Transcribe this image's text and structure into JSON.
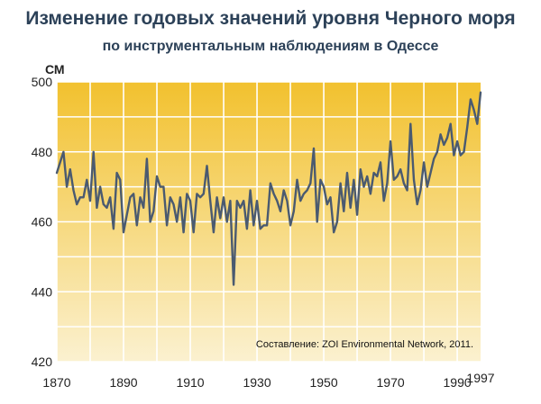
{
  "chart_data": {
    "type": "line",
    "title": "Изменение годовых значений уровня Черного моря",
    "subtitle": "по инструментальным наблюдениям в Одессе",
    "ylabel": "СМ",
    "xlabel": "",
    "source": "Составление: ZOI Environmental Network, 2011.",
    "xlim": [
      1870,
      1997
    ],
    "ylim": [
      420,
      500
    ],
    "x_ticks": [
      1870,
      1890,
      1910,
      1930,
      1950,
      1970,
      1990,
      1997
    ],
    "y_ticks": [
      420,
      440,
      460,
      480,
      500
    ],
    "grid": true,
    "colors": {
      "line": "#4a5a70",
      "grid": "#ffffff",
      "bg_top": "#f2c12e",
      "bg_bottom": "#fbf1d0"
    },
    "series": [
      {
        "name": "",
        "x": [
          1870,
          1871,
          1872,
          1873,
          1874,
          1875,
          1876,
          1877,
          1878,
          1879,
          1880,
          1881,
          1882,
          1883,
          1884,
          1885,
          1886,
          1887,
          1888,
          1889,
          1890,
          1891,
          1892,
          1893,
          1894,
          1895,
          1896,
          1897,
          1898,
          1899,
          1900,
          1901,
          1902,
          1903,
          1904,
          1905,
          1906,
          1907,
          1908,
          1909,
          1910,
          1911,
          1912,
          1913,
          1914,
          1915,
          1916,
          1917,
          1918,
          1919,
          1920,
          1921,
          1922,
          1923,
          1924,
          1925,
          1926,
          1927,
          1928,
          1929,
          1930,
          1931,
          1932,
          1933,
          1934,
          1935,
          1936,
          1937,
          1938,
          1939,
          1940,
          1941,
          1942,
          1943,
          1944,
          1945,
          1946,
          1947,
          1948,
          1949,
          1950,
          1951,
          1952,
          1953,
          1954,
          1955,
          1956,
          1957,
          1958,
          1959,
          1960,
          1961,
          1962,
          1963,
          1964,
          1965,
          1966,
          1967,
          1968,
          1969,
          1970,
          1971,
          1972,
          1973,
          1974,
          1975,
          1976,
          1977,
          1978,
          1979,
          1980,
          1981,
          1982,
          1983,
          1984,
          1985,
          1986,
          1987,
          1988,
          1989,
          1990,
          1991,
          1992,
          1993,
          1994,
          1995,
          1996,
          1997
        ],
        "values": [
          474,
          477,
          480,
          470,
          475,
          469,
          465,
          467,
          467,
          472,
          466,
          480,
          464,
          470,
          465,
          464,
          467,
          458,
          474,
          472,
          457,
          462,
          467,
          468,
          459,
          467,
          464,
          478,
          460,
          463,
          473,
          470,
          470,
          459,
          467,
          465,
          460,
          467,
          457,
          468,
          466,
          457,
          468,
          467,
          468,
          476,
          466,
          457,
          467,
          461,
          467,
          460,
          466,
          442,
          466,
          464,
          466,
          458,
          469,
          459,
          466,
          458,
          459,
          459,
          471,
          468,
          466,
          463,
          469,
          466,
          459,
          463,
          472,
          466,
          468,
          469,
          471,
          481,
          460,
          472,
          470,
          465,
          467,
          457,
          460,
          471,
          463,
          474,
          464,
          472,
          462,
          475,
          470,
          473,
          468,
          474,
          473,
          477,
          466,
          471,
          483,
          472,
          473,
          475,
          471,
          469,
          488,
          472,
          465,
          469,
          477,
          470,
          474,
          478,
          480,
          485,
          482,
          484,
          488,
          479,
          483,
          479,
          480,
          487,
          495,
          492,
          488,
          497
        ]
      }
    ]
  }
}
